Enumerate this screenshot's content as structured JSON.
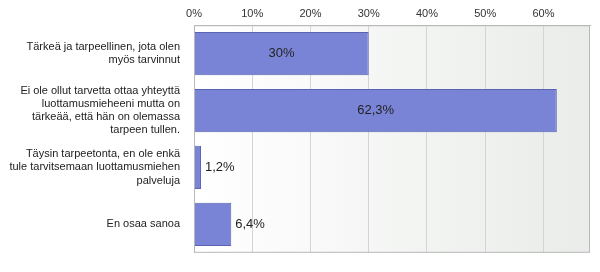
{
  "chart_data": {
    "type": "bar",
    "orientation": "horizontal",
    "categories": [
      "Tärkeä ja tarpeellinen, jota olen myös tarvinnut",
      "Ei ole ollut tarvetta ottaa yhteyttä luottamusmieheeni mutta on tärkeää, että hän on olemassa tarpeen tullen.",
      "Täysin tarpeetonta, en ole enkä tule tarvitsemaan luottamusmiehen palveluja",
      "En osaa sanoa"
    ],
    "values": [
      30,
      62.3,
      1.2,
      6.4
    ],
    "value_labels": [
      "30%",
      "62,3%",
      "1,2%",
      "6,4%"
    ],
    "data_labels": true,
    "color": "#7a84d6",
    "xlim": [
      0,
      68
    ],
    "xticks": [
      {
        "value": 0,
        "label": "0%"
      },
      {
        "value": 10,
        "label": "10%"
      },
      {
        "value": 20,
        "label": "20%"
      },
      {
        "value": 30,
        "label": "30%"
      },
      {
        "value": 40,
        "label": "40%"
      },
      {
        "value": 50,
        "label": "50%"
      },
      {
        "value": 60,
        "label": "60%"
      }
    ],
    "grid": true
  }
}
